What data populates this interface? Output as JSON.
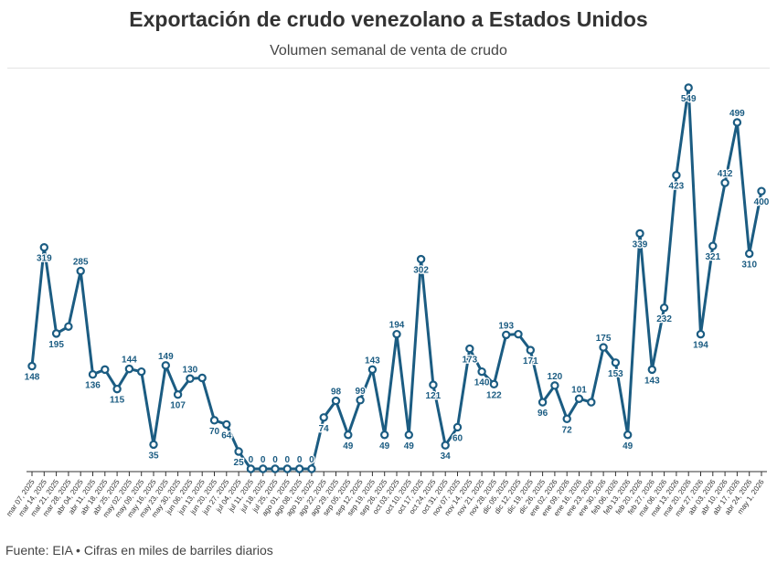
{
  "header": {
    "title": "Exportación de crudo venezolano a Estados Unidos",
    "subtitle": "Volumen semanal de venta de crudo"
  },
  "footer": {
    "source": "Fuente: EIA • Cifras en miles de barriles diarios"
  },
  "colors": {
    "line": "#1b5c82",
    "label": "#1b5c82",
    "axis": "#333333"
  },
  "chart_data": {
    "type": "line",
    "title": "Exportación de crudo venezolano a Estados Unidos",
    "subtitle": "Volumen semanal de venta de crudo",
    "xlabel": "",
    "ylabel": "",
    "ylim": [
      0,
      560
    ],
    "grid": false,
    "legend": "none",
    "x": [
      "mar 07, 2025",
      "mar 14, 2025",
      "mar 21, 2025",
      "mar 28, 2025",
      "abr 04, 2025",
      "abr 11, 2025",
      "abr 18, 2025",
      "abr 25, 2025",
      "may 02, 2025",
      "may 09, 2025",
      "may 16, 2025",
      "may 23, 2025",
      "may 30, 2025",
      "jun 06, 2025",
      "jun 13, 2025",
      "jun 20, 2025",
      "jun 27, 2025",
      "jul 04, 2025",
      "jul 11, 2025",
      "jul 18, 2025",
      "jul 25, 2025",
      "ago 01, 2025",
      "ago 08, 2025",
      "ago 15, 2025",
      "ago 22, 2025",
      "ago 29, 2025",
      "sep 05, 2025",
      "sep 12, 2025",
      "sep 19, 2025",
      "sep 26, 2025",
      "oct 03, 2025",
      "oct 10, 2025",
      "oct 17, 2025",
      "oct 24, 2025",
      "oct 31, 2025",
      "nov 07, 2025",
      "nov 14, 2025",
      "nov 21, 2025",
      "nov 28, 2025",
      "dic 05, 2025",
      "dic 12, 2025",
      "dic 19, 2025",
      "dic 26, 2025",
      "ene 02, 2026",
      "ene 09, 2026",
      "ene 16, 2026",
      "ene 23, 2026",
      "ene 30, 2026",
      "feb 06, 2026",
      "feb 13, 2026",
      "feb 20, 2026",
      "feb 27, 2026",
      "mar 06, 2026",
      "mar 13, 2026",
      "mar 20, 2026",
      "mar 27, 2026",
      "abr 03, 2026",
      "abr 10, 2026",
      "abr 17, 2026",
      "abr 24, 2026",
      "may 1, 2026"
    ],
    "series": [
      {
        "values": [
          148,
          319,
          195,
          205,
          285,
          136,
          143,
          115,
          144,
          140,
          35,
          149,
          107,
          130,
          131,
          70,
          64,
          25,
          0,
          0,
          0,
          0,
          0,
          0,
          74,
          98,
          49,
          99,
          143,
          49,
          194,
          49,
          302,
          121,
          34,
          60,
          173,
          140,
          122,
          193,
          194,
          171,
          96,
          120,
          72,
          101,
          96,
          175,
          153,
          49,
          339,
          143,
          232,
          423,
          549,
          194,
          321,
          412,
          499,
          310,
          400
        ],
        "labels": [
          "148",
          "319",
          "195",
          "",
          "285",
          "136",
          "",
          "115",
          "144",
          "",
          "35",
          "149",
          "107",
          "130",
          "",
          "70",
          "64",
          "25",
          "0",
          "0",
          "0",
          "0",
          "0",
          "0",
          "74",
          "98",
          "49",
          "99",
          "143",
          "49",
          "194",
          "49",
          "302",
          "121",
          "34",
          "60",
          "173",
          "140",
          "122",
          "193",
          "",
          "171",
          "96",
          "120",
          "72",
          "101",
          "",
          "175",
          "153",
          "49",
          "339",
          "143",
          "232",
          "423",
          "549",
          "194",
          "321",
          "412",
          "499",
          "310",
          "400"
        ],
        "label_pos": [
          "b",
          "b",
          "b",
          "",
          "t",
          "b",
          "",
          "b",
          "t",
          "",
          "b",
          "t",
          "b",
          "t",
          "",
          "b",
          "b",
          "b",
          "t",
          "t",
          "t",
          "t",
          "t",
          "t",
          "b",
          "t",
          "b",
          "t",
          "t",
          "b",
          "t",
          "b",
          "b",
          "b",
          "b",
          "b",
          "b",
          "b",
          "b",
          "t",
          "",
          "b",
          "b",
          "t",
          "b",
          "t",
          "",
          "t",
          "b",
          "b",
          "b",
          "b",
          "b",
          "b",
          "b",
          "b",
          "b",
          "t",
          "t",
          "b",
          "b"
        ]
      }
    ]
  }
}
